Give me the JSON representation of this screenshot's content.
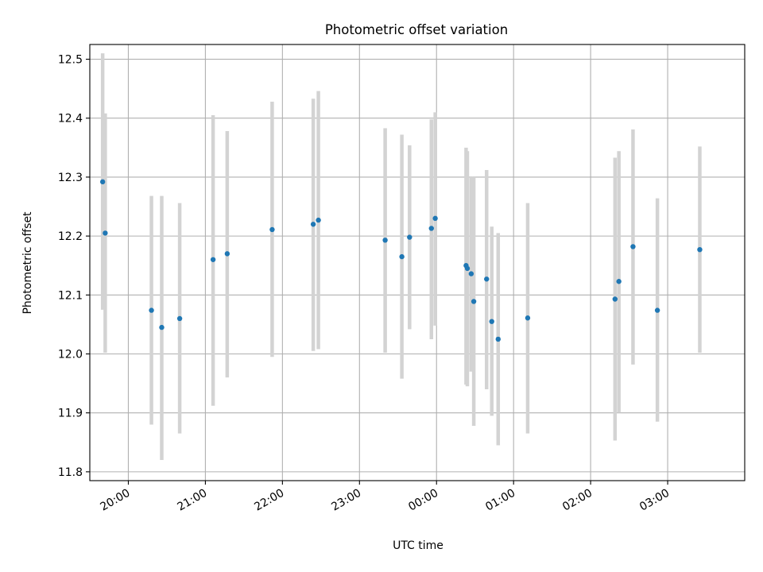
{
  "chart_data": {
    "type": "scatter",
    "title": "Photometric offset variation",
    "xlabel": "UTC time",
    "ylabel": "Photometric offset",
    "ylim": [
      11.785,
      12.525
    ],
    "xlim": [
      "19:30",
      "04:00"
    ],
    "grid": true,
    "x_tick_labels": [
      "20:00",
      "21:00",
      "22:00",
      "23:00",
      "00:00",
      "01:00",
      "02:00",
      "03:00"
    ],
    "y_tick_labels": [
      "11.8",
      "11.9",
      "12.0",
      "12.1",
      "12.2",
      "12.3",
      "12.4",
      "12.5"
    ],
    "series": [
      {
        "points": [
          {
            "x": "19:40",
            "y": 12.292,
            "err_low": 12.075,
            "err_high": 12.51
          },
          {
            "x": "19:42",
            "y": 12.205,
            "err_low": 12.002,
            "err_high": 12.408
          },
          {
            "x": "20:18",
            "y": 12.074,
            "err_low": 11.88,
            "err_high": 12.268
          },
          {
            "x": "20:26",
            "y": 12.045,
            "err_low": 11.82,
            "err_high": 12.268
          },
          {
            "x": "20:40",
            "y": 12.06,
            "err_low": 11.865,
            "err_high": 12.256
          },
          {
            "x": "21:06",
            "y": 12.16,
            "err_low": 11.912,
            "err_high": 12.405
          },
          {
            "x": "21:17",
            "y": 12.17,
            "err_low": 11.96,
            "err_high": 12.378
          },
          {
            "x": "21:52",
            "y": 12.211,
            "err_low": 11.995,
            "err_high": 12.428
          },
          {
            "x": "22:24",
            "y": 12.22,
            "err_low": 12.005,
            "err_high": 12.433
          },
          {
            "x": "22:28",
            "y": 12.227,
            "err_low": 12.008,
            "err_high": 12.446
          },
          {
            "x": "23:20",
            "y": 12.193,
            "err_low": 12.002,
            "err_high": 12.383
          },
          {
            "x": "23:33",
            "y": 12.165,
            "err_low": 11.958,
            "err_high": 12.372
          },
          {
            "x": "23:39",
            "y": 12.198,
            "err_low": 12.042,
            "err_high": 12.354
          },
          {
            "x": "23:56",
            "y": 12.213,
            "err_low": 12.025,
            "err_high": 12.398
          },
          {
            "x": "23:59",
            "y": 12.23,
            "err_low": 12.048,
            "err_high": 12.41
          },
          {
            "x": "00:23",
            "y": 12.15,
            "err_low": 11.948,
            "err_high": 12.35
          },
          {
            "x": "00:24",
            "y": 12.145,
            "err_low": 11.945,
            "err_high": 12.344
          },
          {
            "x": "00:27",
            "y": 12.136,
            "err_low": 11.97,
            "err_high": 12.3
          },
          {
            "x": "00:29",
            "y": 12.089,
            "err_low": 11.878,
            "err_high": 12.3
          },
          {
            "x": "00:39",
            "y": 12.127,
            "err_low": 11.94,
            "err_high": 12.312
          },
          {
            "x": "00:43",
            "y": 12.055,
            "err_low": 11.895,
            "err_high": 12.216
          },
          {
            "x": "00:48",
            "y": 12.025,
            "err_low": 11.845,
            "err_high": 12.205
          },
          {
            "x": "01:11",
            "y": 12.061,
            "err_low": 11.865,
            "err_high": 12.256
          },
          {
            "x": "02:19",
            "y": 12.093,
            "err_low": 11.853,
            "err_high": 12.333
          },
          {
            "x": "02:22",
            "y": 12.123,
            "err_low": 11.9,
            "err_high": 12.344
          },
          {
            "x": "02:33",
            "y": 12.182,
            "err_low": 11.982,
            "err_high": 12.381
          },
          {
            "x": "02:52",
            "y": 12.074,
            "err_low": 11.885,
            "err_high": 12.264
          },
          {
            "x": "03:25",
            "y": 12.177,
            "err_low": 12.002,
            "err_high": 12.352
          }
        ]
      }
    ]
  }
}
